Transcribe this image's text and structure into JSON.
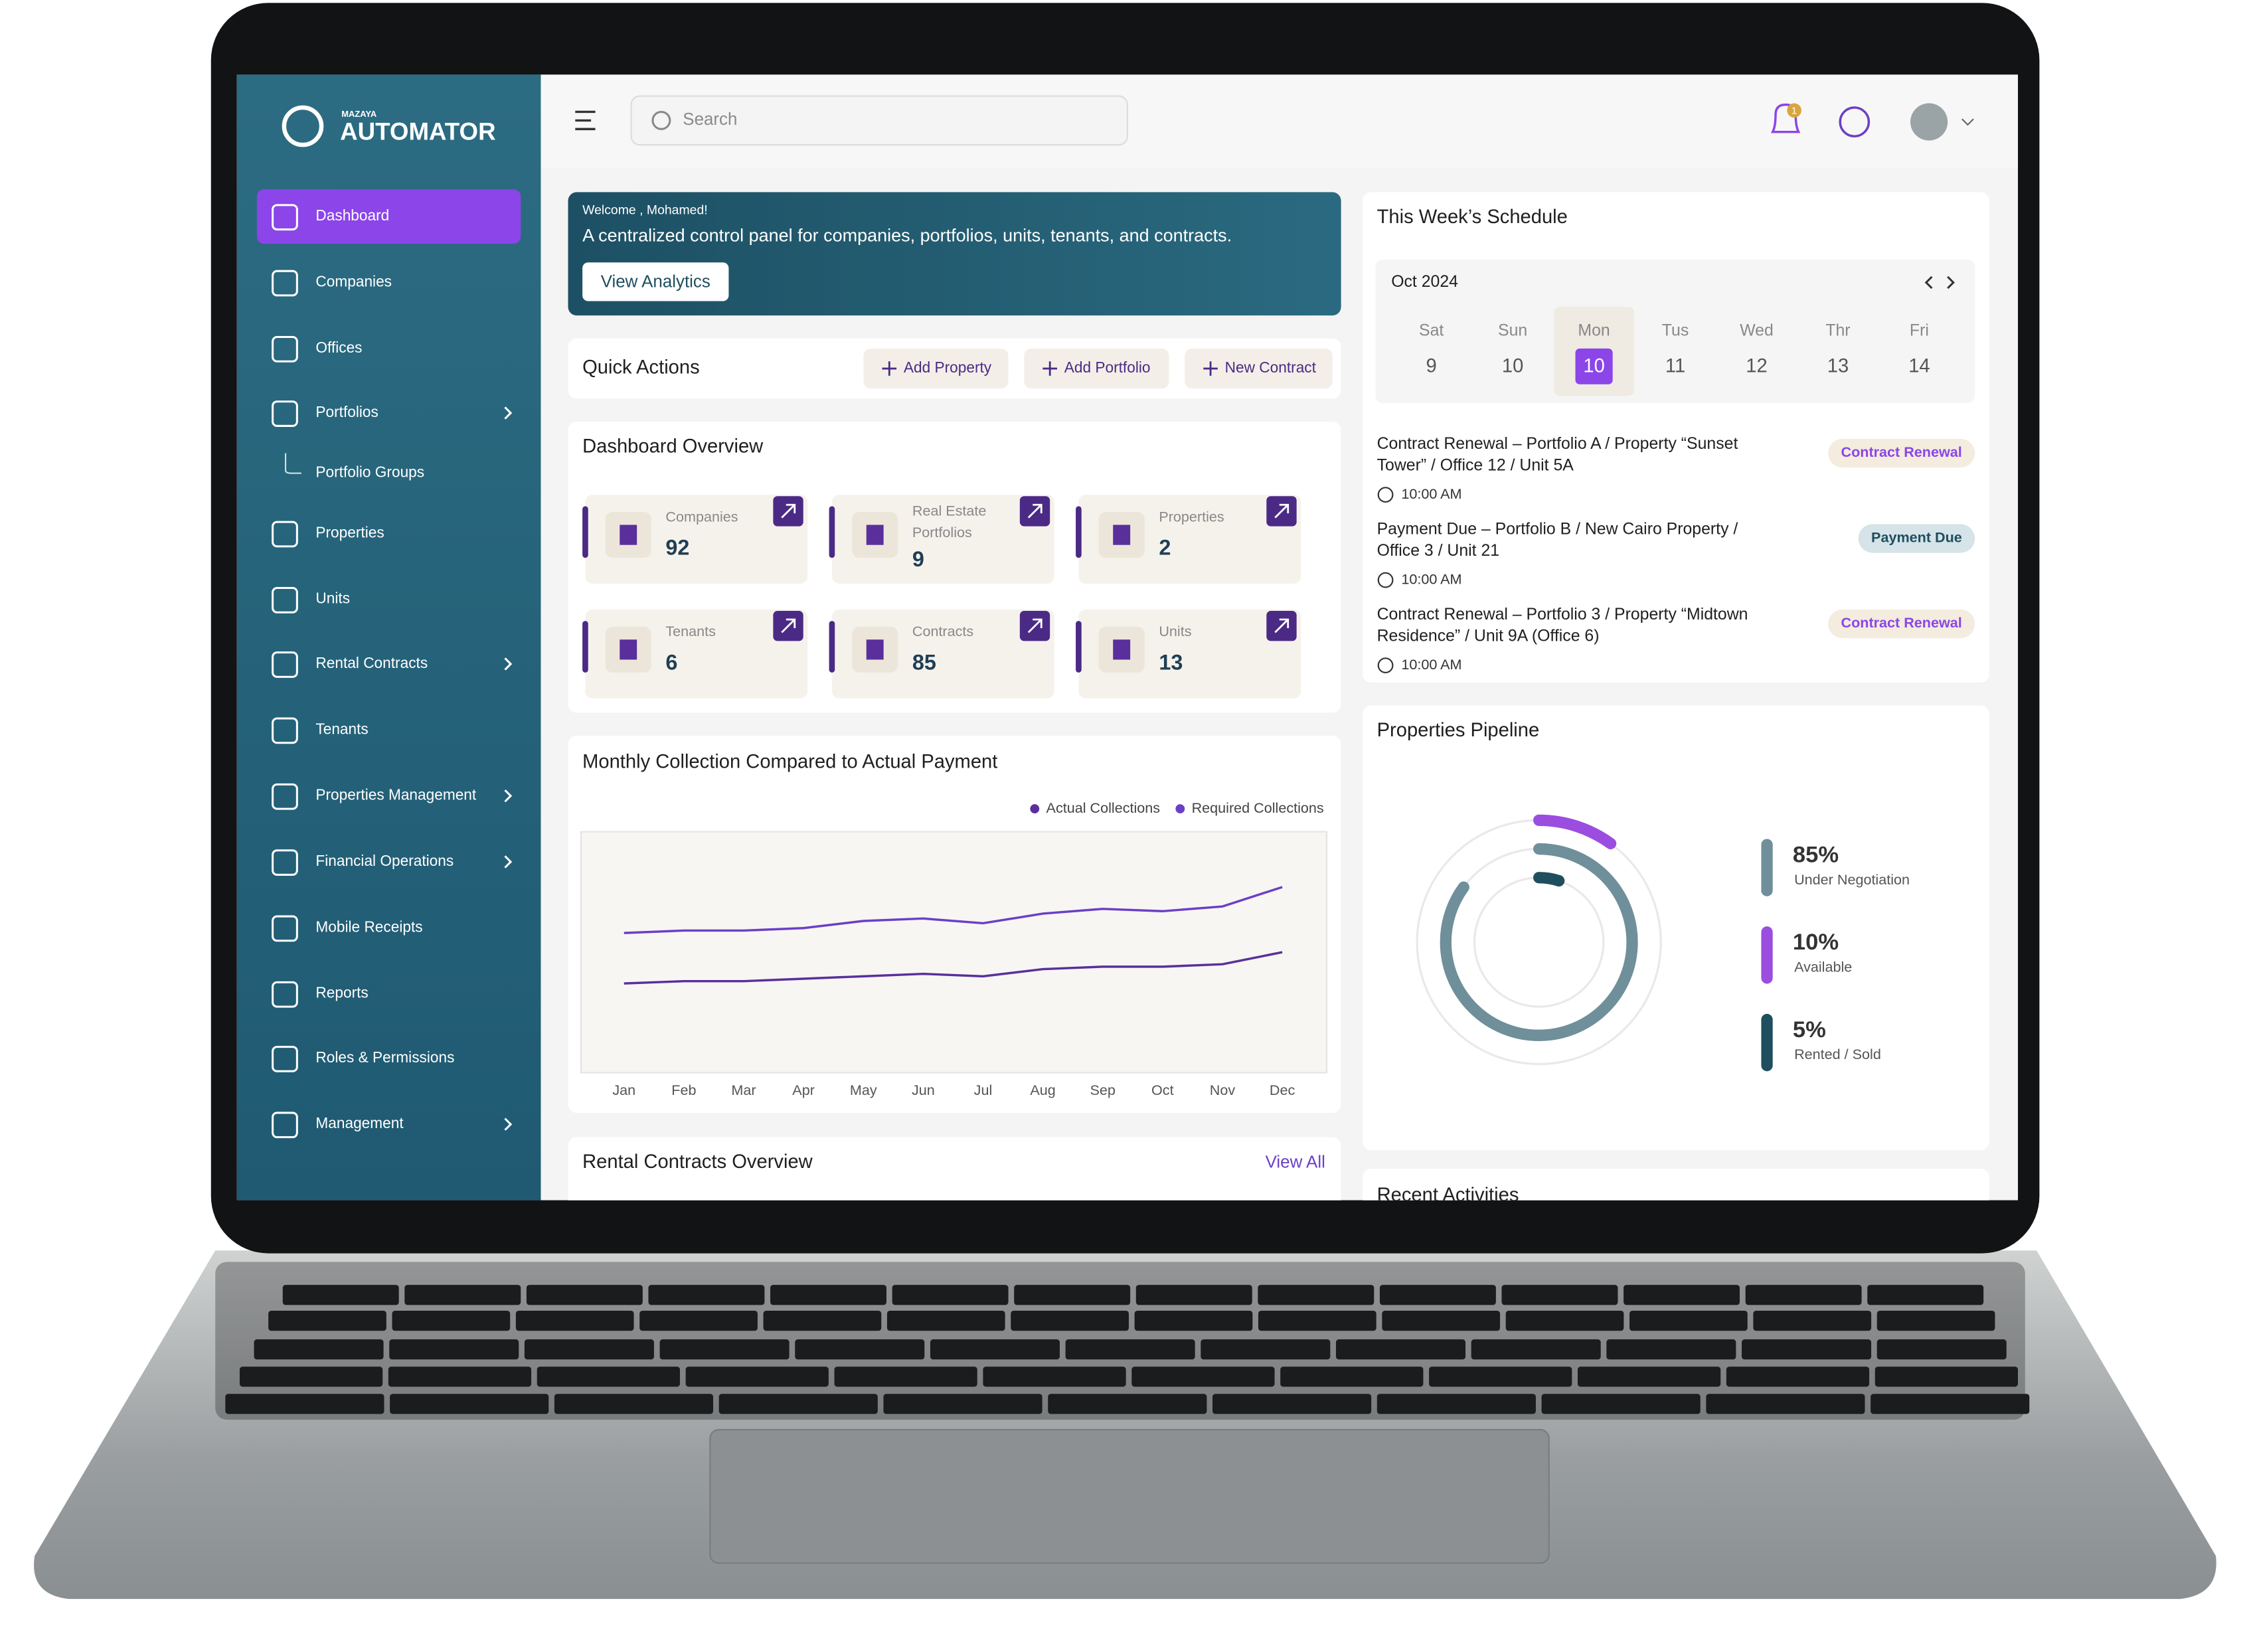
{
  "brand": {
    "small": "MAZAYA",
    "name": "AUTOMATOR"
  },
  "sidebar": {
    "active_item": 0,
    "items": [
      {
        "label": "Dashboard"
      },
      {
        "label": "Companies"
      },
      {
        "label": "Offices"
      },
      {
        "label": "Portfolios",
        "submenu": true
      },
      {
        "label": "Portfolio Groups",
        "child": true
      },
      {
        "label": "Properties"
      },
      {
        "label": "Units"
      },
      {
        "label": "Rental Contracts",
        "submenu": true
      },
      {
        "label": "Tenants"
      },
      {
        "label": "Properties Management",
        "submenu": true
      },
      {
        "label": "Financial Operations",
        "submenu": true
      },
      {
        "label": "Mobile Receipts"
      },
      {
        "label": "Reports"
      },
      {
        "label": "Roles & Permissions"
      },
      {
        "label": "Management",
        "submenu": true
      }
    ]
  },
  "topbar": {
    "search_placeholder": "Search",
    "notifications": 1
  },
  "welcome": {
    "greeting": "Welcome , Mohamed!",
    "text": "A centralized control panel for companies, portfolios, units, tenants, and contracts.",
    "button": "View Analytics"
  },
  "quick_actions": {
    "title": "Quick Actions",
    "buttons": [
      "Add Property",
      "Add Portfolio",
      "New Contract"
    ]
  },
  "overview": {
    "title": "Dashboard Overview",
    "cards": [
      {
        "label": [
          "Companies"
        ],
        "value": 92
      },
      {
        "label": [
          "Real Estate",
          "Portfolios"
        ],
        "value": 9
      },
      {
        "label": [
          "Properties"
        ],
        "value": 2
      },
      {
        "label": [
          "Tenants"
        ],
        "value": 6
      },
      {
        "label": [
          "Contracts"
        ],
        "value": 85
      },
      {
        "label": [
          "Units"
        ],
        "value": 13
      }
    ]
  },
  "chart_data": [
    {
      "type": "line",
      "title": "Monthly Collection Compared to Actual Payment",
      "categories": [
        "Jan",
        "Feb",
        "Mar",
        "Apr",
        "May",
        "Jun",
        "Jul",
        "Aug",
        "Sep",
        "Oct",
        "Nov",
        "Dec"
      ],
      "ylim": [
        0,
        100
      ],
      "series": [
        {
          "name": "Actual Collections",
          "color": "#5a2f9c",
          "values": [
            37,
            38,
            38,
            39,
            40,
            41,
            40,
            43,
            44,
            44,
            45,
            50
          ]
        },
        {
          "name": "Required Collections",
          "color": "#6b3fc7",
          "values": [
            58,
            59,
            59,
            60,
            63,
            64,
            62,
            66,
            68,
            67,
            69,
            77
          ]
        }
      ]
    },
    {
      "type": "donut",
      "title": "Properties Pipeline",
      "categories": [
        "Under Negotiation",
        "Available",
        "Rented / Sold"
      ],
      "values": [
        85,
        10,
        5
      ],
      "value_labels": [
        "85%",
        "10%",
        "5%"
      ],
      "colors": [
        "#6f8f9a",
        "#9b4de0",
        "#1f4f5f"
      ]
    }
  ],
  "rental": {
    "title": "Rental Contracts Overview",
    "link": "View All"
  },
  "schedule": {
    "title": "This Week’s Schedule",
    "month": "Oct 2024",
    "selected": 2,
    "days": [
      {
        "name": "Sat",
        "date": 9
      },
      {
        "name": "Sun",
        "date": 10
      },
      {
        "name": "Mon",
        "date": 10
      },
      {
        "name": "Tus",
        "date": 11
      },
      {
        "name": "Wed",
        "date": 12
      },
      {
        "name": "Thr",
        "date": 13
      },
      {
        "name": "Fri",
        "date": 14
      }
    ],
    "events": [
      {
        "lines": [
          "Contract Renewal – Portfolio A / Property “Sunset",
          "Tower” / Office 12 / Unit 5A"
        ],
        "time": "10:00 AM",
        "tag": "Contract Renewal",
        "tag_color": "#8b45e8",
        "tag_bg": "#f3ecdf"
      },
      {
        "lines": [
          "Payment Due – Portfolio B / New Cairo Property /",
          "Office 3 / Unit 21"
        ],
        "time": "10:00 AM",
        "tag": "Payment Due",
        "tag_color": "#1f4f5f",
        "tag_bg": "#d6e3e8"
      },
      {
        "lines": [
          "Contract Renewal – Portfolio 3 / Property “Midtown",
          "Residence” / Unit 9A (Office 6)"
        ],
        "time": "10:00 AM",
        "tag": "Contract Renewal",
        "tag_color": "#8b45e8",
        "tag_bg": "#f3ecdf"
      }
    ]
  },
  "recent": {
    "title": "Recent Activities"
  }
}
